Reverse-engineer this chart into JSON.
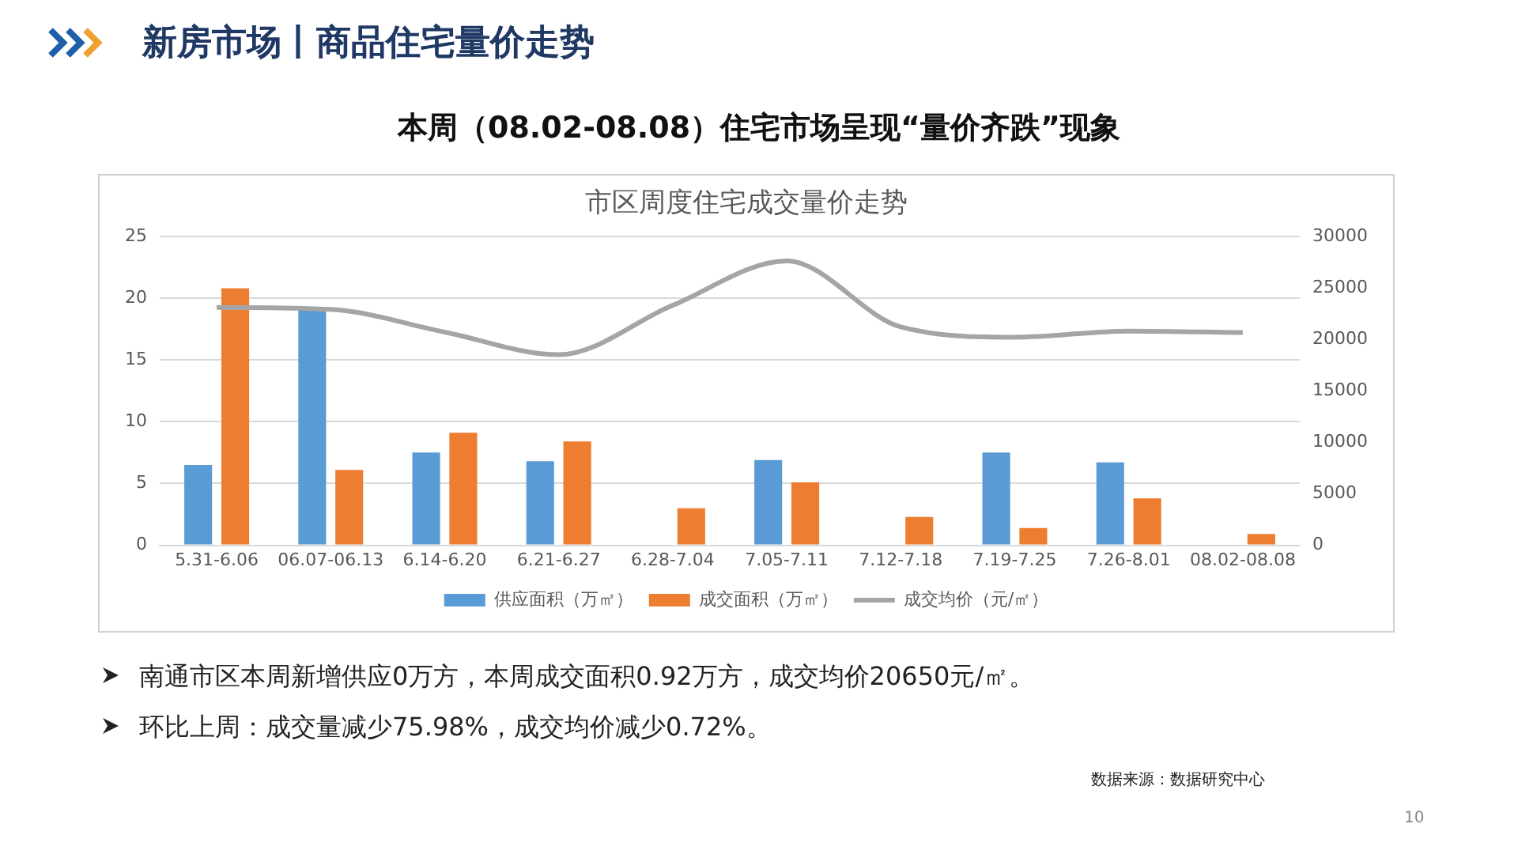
{
  "chart_data": {
    "type": "bar",
    "title": "市区周度住宅成交量价走势",
    "categories": [
      "5.31-6.06",
      "06.07-06.13",
      "6.14-6.20",
      "6.21-6.27",
      "6.28-7.04",
      "7.05-7.11",
      "7.12-7.18",
      "7.19-7.25",
      "7.26-8.01",
      "08.02-08.08"
    ],
    "series": [
      {
        "name": "供应面积（万㎡）",
        "color": "#5b9bd5",
        "values": [
          6.5,
          19.2,
          7.5,
          6.8,
          null,
          6.9,
          null,
          7.5,
          6.7,
          null
        ]
      },
      {
        "name": "成交面积（万㎡）",
        "color": "#ed7d31",
        "values": [
          20.8,
          6.1,
          9.1,
          8.4,
          3.0,
          5.1,
          2.3,
          1.4,
          3.8,
          0.92
        ]
      },
      {
        "name": "成交均价（元/㎡）",
        "type": "line",
        "axis": "y2",
        "color": "#a5a5a5",
        "values": [
          23100,
          22900,
          20700,
          18500,
          23300,
          27600,
          21200,
          20200,
          20800,
          20650
        ]
      }
    ],
    "ylim": [
      0,
      25
    ],
    "yticks": [
      0,
      5,
      10,
      15,
      20,
      25
    ],
    "y2lim": [
      0,
      30000
    ],
    "y2ticks": [
      0,
      5000,
      10000,
      15000,
      20000,
      25000,
      30000
    ],
    "grid": "y",
    "legend": "bottom",
    "marker": "none",
    "annotations": [
      "新房市场丨商品住宅量价走势",
      "本周（08.02-08.08）住宅市场呈现“量价齐跌”现象",
      "南通市区本周新增供应0万方，本周成交面积0.92万方，成交均价20650元/㎡。",
      "环比上周：成交量减少75.98%，成交均价减少0.72%。",
      "数据来源：数据研究中心",
      "10"
    ]
  }
}
